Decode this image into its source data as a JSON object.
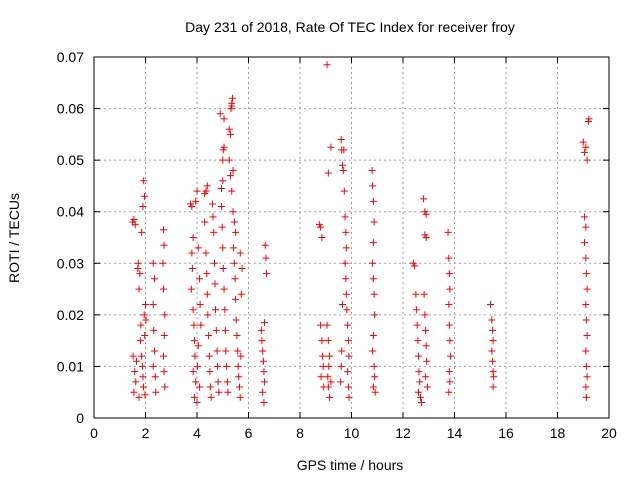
{
  "chart_data": {
    "type": "scatter",
    "title": "Day 231 of 2018, Rate Of TEC Index for receiver froy",
    "xlabel": "GPS time / hours",
    "ylabel": "ROTI / TECUs",
    "xlim": [
      0,
      20
    ],
    "ylim": [
      0,
      0.07
    ],
    "xticks": [
      0,
      2,
      4,
      6,
      8,
      10,
      12,
      14,
      16,
      18,
      20
    ],
    "xtick_labels": [
      "0",
      "2",
      "4",
      "6",
      "8",
      "10",
      "12",
      "14",
      "16",
      "18",
      "20"
    ],
    "yticks": [
      0,
      0.01,
      0.02,
      0.03,
      0.04,
      0.05,
      0.06,
      0.07
    ],
    "ytick_labels": [
      "0",
      "0.01",
      "0.02",
      "0.03",
      "0.04",
      "0.05",
      "0.06",
      "0.07"
    ],
    "grid": true,
    "marker": "+",
    "color": "#ff0000",
    "series": [
      {
        "name": "ROTI",
        "points": [
          [
            1.5,
            0.038
          ],
          [
            1.55,
            0.0385
          ],
          [
            1.6,
            0.0375
          ],
          [
            1.52,
            0.012
          ],
          [
            1.58,
            0.009
          ],
          [
            1.62,
            0.007
          ],
          [
            1.55,
            0.005
          ],
          [
            1.65,
            0.011
          ],
          [
            1.7,
            0.029
          ],
          [
            1.72,
            0.03
          ],
          [
            1.75,
            0.025
          ],
          [
            1.78,
            0.028
          ],
          [
            1.8,
            0.015
          ],
          [
            1.82,
            0.018
          ],
          [
            1.85,
            0.012
          ],
          [
            1.88,
            0.01
          ],
          [
            1.9,
            0.008
          ],
          [
            1.92,
            0.006
          ],
          [
            1.95,
            0.02
          ],
          [
            1.97,
            0.016
          ],
          [
            1.85,
            0.036
          ],
          [
            1.9,
            0.041
          ],
          [
            1.93,
            0.046
          ],
          [
            1.96,
            0.043
          ],
          [
            2.0,
            0.022
          ],
          [
            2.02,
            0.019
          ],
          [
            1.75,
            0.004
          ],
          [
            1.98,
            0.0045
          ],
          [
            2.3,
            0.03
          ],
          [
            2.35,
            0.027
          ],
          [
            2.3,
            0.022
          ],
          [
            2.32,
            0.017
          ],
          [
            2.35,
            0.013
          ],
          [
            2.3,
            0.01
          ],
          [
            2.38,
            0.008
          ],
          [
            2.4,
            0.005
          ],
          [
            2.7,
            0.0365
          ],
          [
            2.72,
            0.0335
          ],
          [
            2.68,
            0.03
          ],
          [
            2.7,
            0.025
          ],
          [
            2.75,
            0.02
          ],
          [
            2.73,
            0.016
          ],
          [
            2.7,
            0.012
          ],
          [
            2.72,
            0.009
          ],
          [
            2.75,
            0.006
          ],
          [
            3.75,
            0.0415
          ],
          [
            3.8,
            0.041
          ],
          [
            3.85,
            0.035
          ],
          [
            3.8,
            0.032
          ],
          [
            3.82,
            0.029
          ],
          [
            3.78,
            0.025
          ],
          [
            3.85,
            0.021
          ],
          [
            3.88,
            0.018
          ],
          [
            3.9,
            0.015
          ],
          [
            3.92,
            0.012
          ],
          [
            3.85,
            0.009
          ],
          [
            3.95,
            0.007
          ],
          [
            3.9,
            0.004
          ],
          [
            4.0,
            0.003
          ],
          [
            4.02,
            0.01
          ],
          [
            4.05,
            0.014
          ],
          [
            3.95,
            0.042
          ],
          [
            4.0,
            0.044
          ],
          [
            4.05,
            0.033
          ],
          [
            4.1,
            0.027
          ],
          [
            4.12,
            0.022
          ],
          [
            4.15,
            0.018
          ],
          [
            4.1,
            0.006
          ],
          [
            4.3,
            0.0435
          ],
          [
            4.35,
            0.044
          ],
          [
            4.4,
            0.045
          ],
          [
            4.3,
            0.038
          ],
          [
            4.35,
            0.032
          ],
          [
            4.38,
            0.028
          ],
          [
            4.4,
            0.024
          ],
          [
            4.42,
            0.02
          ],
          [
            4.45,
            0.016
          ],
          [
            4.48,
            0.012
          ],
          [
            4.5,
            0.009
          ],
          [
            4.52,
            0.006
          ],
          [
            4.55,
            0.004
          ],
          [
            4.6,
            0.0415
          ],
          [
            4.62,
            0.039
          ],
          [
            4.65,
            0.036
          ],
          [
            4.68,
            0.03
          ],
          [
            4.7,
            0.026
          ],
          [
            4.72,
            0.021
          ],
          [
            4.75,
            0.017
          ],
          [
            4.78,
            0.013
          ],
          [
            4.8,
            0.01
          ],
          [
            4.82,
            0.007
          ],
          [
            4.85,
            0.005
          ],
          [
            4.9,
            0.059
          ],
          [
            4.95,
            0.0445
          ],
          [
            5.0,
            0.05
          ],
          [
            5.02,
            0.052
          ],
          [
            5.05,
            0.0525
          ],
          [
            5.0,
            0.046
          ],
          [
            4.95,
            0.041
          ],
          [
            4.98,
            0.037
          ],
          [
            5.0,
            0.033
          ],
          [
            5.02,
            0.029
          ],
          [
            5.05,
            0.025
          ],
          [
            5.08,
            0.021
          ],
          [
            5.1,
            0.017
          ],
          [
            5.12,
            0.013
          ],
          [
            5.15,
            0.01
          ],
          [
            5.18,
            0.007
          ],
          [
            5.2,
            0.005
          ],
          [
            5.05,
            0.058
          ],
          [
            5.25,
            0.056
          ],
          [
            5.3,
            0.055
          ],
          [
            5.32,
            0.06
          ],
          [
            5.35,
            0.061
          ],
          [
            5.38,
            0.062
          ],
          [
            5.35,
            0.0605
          ],
          [
            5.25,
            0.05
          ],
          [
            5.3,
            0.047
          ],
          [
            5.35,
            0.044
          ],
          [
            5.4,
            0.04
          ],
          [
            5.45,
            0.038
          ],
          [
            5.5,
            0.036
          ],
          [
            5.42,
            0.033
          ],
          [
            5.45,
            0.03
          ],
          [
            5.48,
            0.027
          ],
          [
            5.5,
            0.023
          ],
          [
            5.52,
            0.019
          ],
          [
            5.55,
            0.016
          ],
          [
            5.58,
            0.013
          ],
          [
            5.6,
            0.01
          ],
          [
            5.62,
            0.008
          ],
          [
            5.65,
            0.006
          ],
          [
            5.68,
            0.004
          ],
          [
            5.7,
            0.012
          ],
          [
            5.72,
            0.024
          ],
          [
            5.75,
            0.029
          ],
          [
            5.68,
            0.032
          ],
          [
            5.4,
            0.048
          ],
          [
            6.5,
            0.017
          ],
          [
            6.52,
            0.015
          ],
          [
            6.55,
            0.013
          ],
          [
            6.58,
            0.011
          ],
          [
            6.6,
            0.009
          ],
          [
            6.62,
            0.007
          ],
          [
            6.55,
            0.005
          ],
          [
            6.6,
            0.003
          ],
          [
            6.65,
            0.0335
          ],
          [
            6.68,
            0.031
          ],
          [
            6.7,
            0.028
          ],
          [
            6.62,
            0.0185
          ],
          [
            8.75,
            0.0375
          ],
          [
            8.8,
            0.037
          ],
          [
            8.85,
            0.035
          ],
          [
            8.8,
            0.018
          ],
          [
            8.85,
            0.015
          ],
          [
            8.88,
            0.012
          ],
          [
            8.9,
            0.01
          ],
          [
            8.82,
            0.008
          ],
          [
            8.92,
            0.006
          ],
          [
            9.05,
            0.0685
          ],
          [
            9.2,
            0.0525
          ],
          [
            9.1,
            0.0475
          ],
          [
            9.05,
            0.018
          ],
          [
            9.1,
            0.015
          ],
          [
            9.15,
            0.012
          ],
          [
            9.12,
            0.01
          ],
          [
            9.08,
            0.008
          ],
          [
            9.1,
            0.006
          ],
          [
            9.15,
            0.004
          ],
          [
            9.2,
            0.007
          ],
          [
            9.6,
            0.054
          ],
          [
            9.62,
            0.052
          ],
          [
            9.65,
            0.049
          ],
          [
            9.68,
            0.048
          ],
          [
            9.7,
            0.052
          ],
          [
            9.72,
            0.044
          ],
          [
            9.75,
            0.039
          ],
          [
            9.78,
            0.036
          ],
          [
            9.8,
            0.033
          ],
          [
            9.75,
            0.03
          ],
          [
            9.78,
            0.027
          ],
          [
            9.8,
            0.024
          ],
          [
            9.82,
            0.021
          ],
          [
            9.85,
            0.018
          ],
          [
            9.88,
            0.015
          ],
          [
            9.9,
            0.012
          ],
          [
            9.85,
            0.009
          ],
          [
            9.88,
            0.006
          ],
          [
            9.9,
            0.004
          ],
          [
            9.65,
            0.022
          ],
          [
            9.62,
            0.013
          ],
          [
            9.6,
            0.01
          ],
          [
            9.58,
            0.007
          ],
          [
            10.8,
            0.048
          ],
          [
            10.82,
            0.045
          ],
          [
            10.85,
            0.042
          ],
          [
            10.88,
            0.038
          ],
          [
            10.85,
            0.034
          ],
          [
            10.82,
            0.03
          ],
          [
            10.85,
            0.027
          ],
          [
            10.88,
            0.024
          ],
          [
            10.9,
            0.02
          ],
          [
            10.85,
            0.016
          ],
          [
            10.82,
            0.013
          ],
          [
            10.88,
            0.01
          ],
          [
            10.9,
            0.008
          ],
          [
            10.85,
            0.006
          ],
          [
            10.92,
            0.005
          ],
          [
            12.4,
            0.03
          ],
          [
            12.45,
            0.0295
          ],
          [
            12.5,
            0.024
          ],
          [
            12.52,
            0.021
          ],
          [
            12.55,
            0.018
          ],
          [
            12.58,
            0.015
          ],
          [
            12.6,
            0.012
          ],
          [
            12.62,
            0.009
          ],
          [
            12.65,
            0.007
          ],
          [
            12.6,
            0.005
          ],
          [
            12.68,
            0.004
          ],
          [
            12.72,
            0.003
          ],
          [
            12.8,
            0.0425
          ],
          [
            12.85,
            0.04
          ],
          [
            12.9,
            0.0395
          ],
          [
            12.85,
            0.0355
          ],
          [
            12.9,
            0.035
          ],
          [
            12.82,
            0.024
          ],
          [
            12.85,
            0.02
          ],
          [
            12.88,
            0.017
          ],
          [
            12.9,
            0.014
          ],
          [
            12.92,
            0.011
          ],
          [
            12.88,
            0.008
          ],
          [
            12.95,
            0.006
          ],
          [
            13.75,
            0.036
          ],
          [
            13.78,
            0.031
          ],
          [
            13.8,
            0.028
          ],
          [
            13.82,
            0.025
          ],
          [
            13.78,
            0.022
          ],
          [
            13.8,
            0.018
          ],
          [
            13.82,
            0.015
          ],
          [
            13.85,
            0.012
          ],
          [
            13.8,
            0.009
          ],
          [
            13.82,
            0.007
          ],
          [
            13.78,
            0.005
          ],
          [
            15.4,
            0.022
          ],
          [
            15.45,
            0.019
          ],
          [
            15.48,
            0.017
          ],
          [
            15.5,
            0.015
          ],
          [
            15.45,
            0.013
          ],
          [
            15.48,
            0.011
          ],
          [
            15.5,
            0.009
          ],
          [
            15.52,
            0.008
          ],
          [
            15.5,
            0.006
          ],
          [
            19.0,
            0.0535
          ],
          [
            19.05,
            0.0515
          ],
          [
            19.1,
            0.0525
          ],
          [
            19.15,
            0.05
          ],
          [
            19.2,
            0.0575
          ],
          [
            19.22,
            0.058
          ],
          [
            19.05,
            0.039
          ],
          [
            19.1,
            0.037
          ],
          [
            19.05,
            0.034
          ],
          [
            19.1,
            0.031
          ],
          [
            19.12,
            0.028
          ],
          [
            19.15,
            0.025
          ],
          [
            19.1,
            0.022
          ],
          [
            19.12,
            0.019
          ],
          [
            19.15,
            0.016
          ],
          [
            19.1,
            0.013
          ],
          [
            19.12,
            0.01
          ],
          [
            19.15,
            0.008
          ],
          [
            19.1,
            0.006
          ],
          [
            19.12,
            0.004
          ]
        ]
      }
    ]
  }
}
